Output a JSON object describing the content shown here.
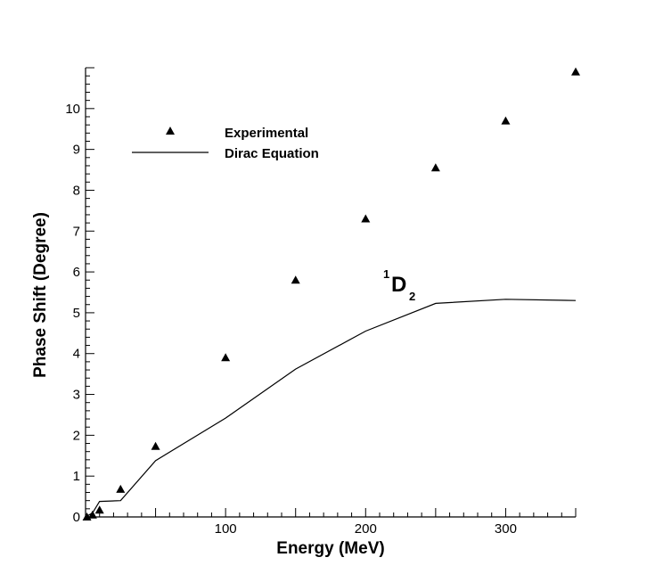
{
  "chart_data": {
    "type": "scatter",
    "xlabel": "Energy (MeV)",
    "ylabel": "Phase Shift (Degree)",
    "xlim": [
      0,
      350
    ],
    "ylim": [
      0,
      11
    ],
    "x_ticks": [
      100,
      200,
      300
    ],
    "y_ticks": [
      0,
      1,
      2,
      3,
      4,
      5,
      6,
      7,
      8,
      9,
      10
    ],
    "legend_position": "upper-left",
    "grid": false,
    "annotation": {
      "main": "D",
      "superscript": "1",
      "subscript": "2"
    },
    "series": [
      {
        "name": "Experimental",
        "style": "triangle-markers",
        "x": [
          1,
          5,
          10,
          25,
          50,
          100,
          150,
          200,
          250,
          300,
          350
        ],
        "y": [
          0.0,
          0.05,
          0.17,
          0.68,
          1.73,
          3.9,
          5.8,
          7.3,
          8.55,
          9.7,
          10.9
        ]
      },
      {
        "name": "Dirac Equation",
        "style": "line",
        "x": [
          0,
          5,
          10,
          25,
          50,
          100,
          150,
          200,
          250,
          300,
          350
        ],
        "y": [
          0.0,
          0.1,
          0.38,
          0.4,
          1.38,
          2.42,
          3.62,
          4.55,
          5.23,
          5.33,
          5.3
        ]
      }
    ]
  }
}
